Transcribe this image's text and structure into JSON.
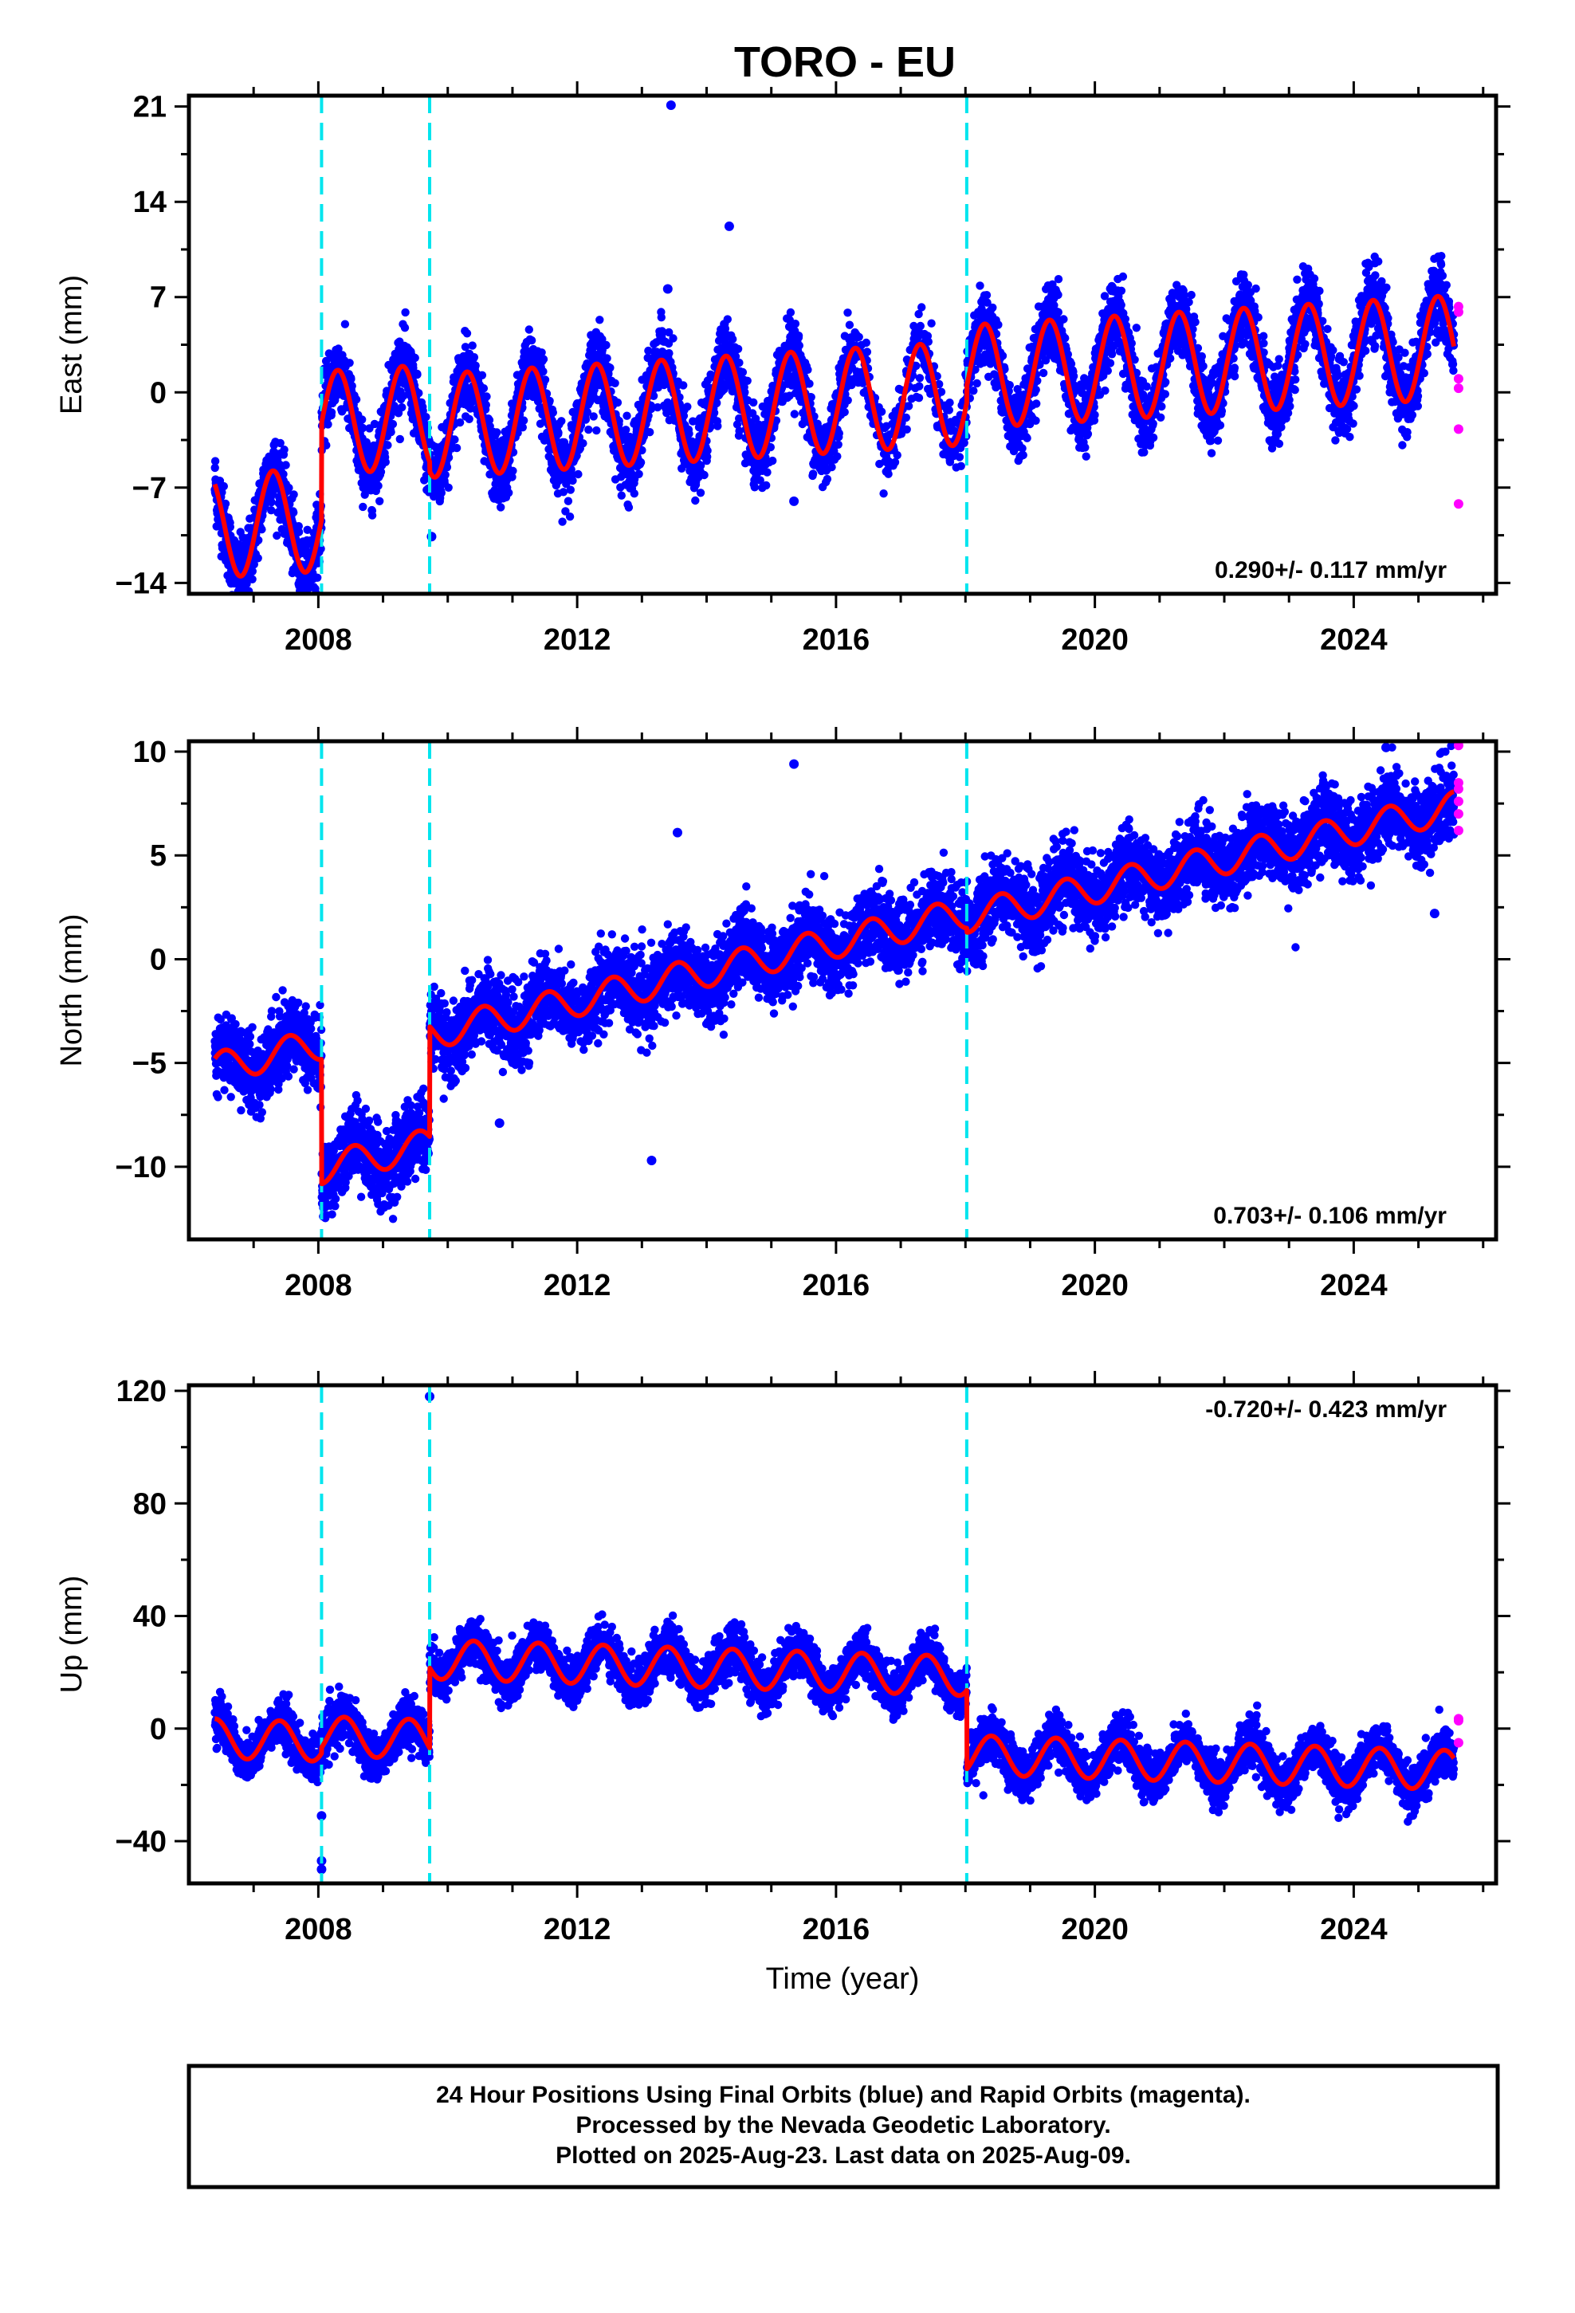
{
  "title": "TORO - EU",
  "colors": {
    "final": "#0000ff",
    "rapid": "#ff00ff",
    "model": "#ff0000",
    "breaks": "#00e5ee"
  },
  "footer": {
    "lines": [
      "24 Hour Positions Using Final Orbits (blue) and Rapid Orbits (magenta).",
      "Processed by the Nevada Geodetic Laboratory.",
      "Plotted on 2025-Aug-23. Last data on 2025-Aug-09."
    ]
  },
  "chart_data": [
    {
      "type": "scatter",
      "ylabel": "East (mm)",
      "xlabel": "",
      "xlim": [
        2006.0,
        2026.2
      ],
      "ylim": [
        -14.8,
        21.8
      ],
      "x_ticks": [
        2008,
        2012,
        2016,
        2020,
        2024
      ],
      "y_ticks": [
        -14,
        -7,
        0,
        7,
        14,
        21
      ],
      "y_tick_labels": [
        "−14",
        "−7",
        "0",
        "7",
        "14",
        "21"
      ],
      "rate_label": "0.290+/- 0.117 mm/yr",
      "rate_position": "bottom-right",
      "breaks": [
        2008.05,
        2009.72,
        2018.02
      ],
      "data_range": [
        2006.4,
        2025.55
      ],
      "model": {
        "segments": [
          {
            "t0": 2006.4,
            "t1": 2008.05,
            "offset": -8.2,
            "rate": 0.29
          },
          {
            "t0": 2008.05,
            "t1": 2009.72,
            "offset": -1.1,
            "rate": 0.29
          },
          {
            "t0": 2009.72,
            "t1": 2018.02,
            "offset": -1.8,
            "rate": 0.29
          },
          {
            "t0": 2018.02,
            "t1": 2025.55,
            "offset": -0.6,
            "rate": 0.29
          }
        ],
        "ref_year": 2012.0,
        "annual_amp": 3.8,
        "annual_phase": 0.05
      },
      "scatter_sd": 1.3,
      "outliers": [
        {
          "x": 2013.45,
          "y": 21.1
        },
        {
          "x": 2014.35,
          "y": 12.2
        },
        {
          "x": 2015.35,
          "y": -8.0
        },
        {
          "x": 2009.75,
          "y": -10.6
        },
        {
          "x": 2013.4,
          "y": 7.6
        }
      ],
      "rapid_points": [
        {
          "x": 2025.62,
          "y": 6.3
        },
        {
          "x": 2025.62,
          "y": 5.9
        },
        {
          "x": 2025.62,
          "y": 1.0
        },
        {
          "x": 2025.62,
          "y": 0.3
        },
        {
          "x": 2025.62,
          "y": -2.7
        },
        {
          "x": 2025.62,
          "y": -8.2
        }
      ]
    },
    {
      "type": "scatter",
      "ylabel": "North (mm)",
      "xlabel": "",
      "xlim": [
        2006.0,
        2026.2
      ],
      "ylim": [
        -13.5,
        10.5
      ],
      "x_ticks": [
        2008,
        2012,
        2016,
        2020,
        2024
      ],
      "y_ticks": [
        -10,
        -5,
        0,
        5,
        10
      ],
      "y_tick_labels": [
        "−10",
        "−5",
        "0",
        "5",
        "10"
      ],
      "rate_label": "0.703+/- 0.106 mm/yr",
      "rate_position": "bottom-right",
      "breaks": [
        2008.05,
        2009.72,
        2018.02
      ],
      "data_range": [
        2006.4,
        2025.55
      ],
      "model": {
        "segments": [
          {
            "t0": 2006.4,
            "t1": 2008.05,
            "offset": -1.3,
            "rate": 0.703
          },
          {
            "t0": 2008.05,
            "t1": 2009.72,
            "offset": -7.3,
            "rate": 0.703
          },
          {
            "t0": 2009.72,
            "t1": 2018.02,
            "offset": -2.0,
            "rate": 0.703
          },
          {
            "t0": 2018.02,
            "t1": 2025.55,
            "offset": -2.2,
            "rate": 0.703
          }
        ],
        "ref_year": 2012.0,
        "annual_amp": 0.75,
        "annual_phase": 0.3
      },
      "scatter_sd": 0.9,
      "outliers": [
        {
          "x": 2015.35,
          "y": 9.4
        },
        {
          "x": 2013.15,
          "y": -9.7
        },
        {
          "x": 2013.55,
          "y": 6.1
        },
        {
          "x": 2024.5,
          "y": 10.2
        },
        {
          "x": 2025.25,
          "y": 2.2
        },
        {
          "x": 2010.8,
          "y": -7.9
        }
      ],
      "rapid_points": [
        {
          "x": 2025.62,
          "y": 10.3
        },
        {
          "x": 2025.62,
          "y": 8.5
        },
        {
          "x": 2025.62,
          "y": 8.2
        },
        {
          "x": 2025.62,
          "y": 7.6
        },
        {
          "x": 2025.62,
          "y": 7.0
        },
        {
          "x": 2025.62,
          "y": 6.2
        }
      ]
    },
    {
      "type": "scatter",
      "ylabel": "Up (mm)",
      "xlabel": "Time (year)",
      "xlim": [
        2006.0,
        2026.2
      ],
      "ylim": [
        -55,
        122
      ],
      "x_ticks": [
        2008,
        2012,
        2016,
        2020,
        2024
      ],
      "y_ticks": [
        -40,
        0,
        40,
        80,
        120
      ],
      "y_tick_labels": [
        "−40",
        "0",
        "40",
        "80",
        "120"
      ],
      "rate_label": "-0.720+/- 0.423 mm/yr",
      "rate_position": "top-right",
      "breaks": [
        2008.05,
        2009.72,
        2018.02
      ],
      "data_range": [
        2006.4,
        2025.55
      ],
      "model": {
        "segments": [
          {
            "t0": 2006.4,
            "t1": 2008.05,
            "offset": -7.5,
            "rate": -0.72
          },
          {
            "t0": 2008.05,
            "t1": 2009.72,
            "offset": -5.5,
            "rate": -0.72
          },
          {
            "t0": 2009.72,
            "t1": 2018.02,
            "offset": 23.0,
            "rate": -0.72
          },
          {
            "t0": 2018.02,
            "t1": 2025.55,
            "offset": -5.0,
            "rate": -0.72
          }
        ],
        "ref_year": 2012.0,
        "annual_amp": 7.0,
        "annual_phase": 0.15
      },
      "scatter_sd": 4.0,
      "outliers": [
        {
          "x": 2009.72,
          "y": 118
        },
        {
          "x": 2008.05,
          "y": -31
        },
        {
          "x": 2008.05,
          "y": -47
        },
        {
          "x": 2008.05,
          "y": -50
        }
      ],
      "rapid_points": [
        {
          "x": 2025.62,
          "y": 3.5
        },
        {
          "x": 2025.62,
          "y": 2.8
        },
        {
          "x": 2025.62,
          "y": -5.0
        }
      ]
    }
  ]
}
